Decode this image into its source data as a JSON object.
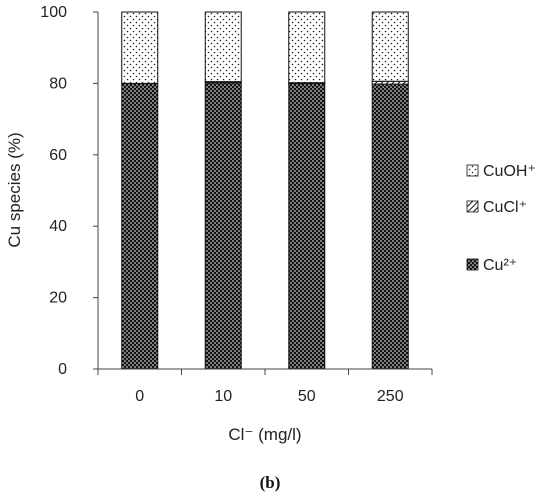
{
  "chart_data": {
    "type": "bar",
    "stacked": true,
    "categories": [
      "0",
      "10",
      "50",
      "250"
    ],
    "series": [
      {
        "name": "Cu²⁺",
        "values": [
          80,
          80.2,
          80,
          79.8
        ],
        "pattern": "dense-dots"
      },
      {
        "name": "CuCl⁺",
        "values": [
          0,
          0.3,
          0.2,
          0.8
        ],
        "pattern": "diagonal-hatch"
      },
      {
        "name": "CuOH⁺",
        "values": [
          20,
          19.5,
          19.8,
          19.4
        ],
        "pattern": "sparse-dots"
      }
    ],
    "xlabel": "Cl⁻ (mg/l)",
    "ylabel": "Cu species (%)",
    "ylim": [
      0,
      100
    ],
    "yticks": [
      "0",
      "20",
      "40",
      "60",
      "80",
      "100"
    ],
    "grid": false,
    "legend_position": "right",
    "colors": {
      "ink": "#111111",
      "background": "#ffffff"
    }
  },
  "caption": "(b)"
}
